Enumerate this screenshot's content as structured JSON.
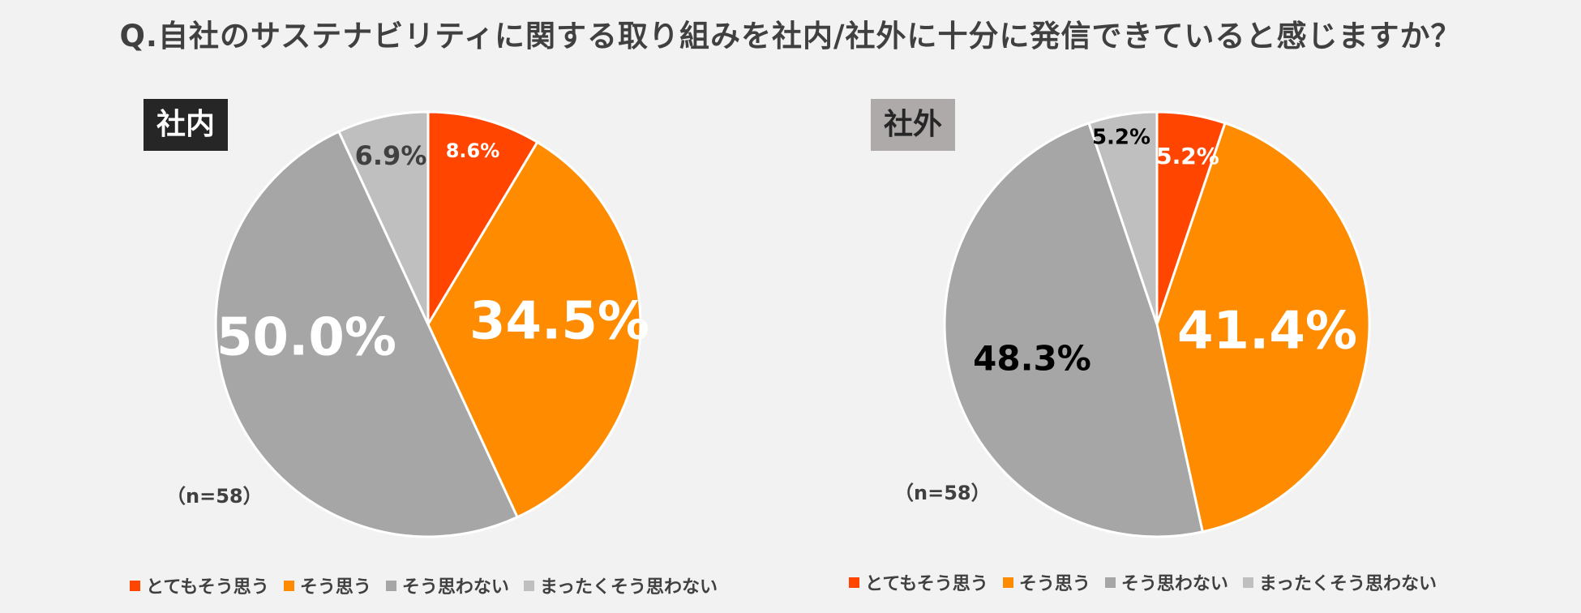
{
  "title": "Q.自社のサステナビリティに関する取り組みを社内/社外に十分に発信できていると感じますか？",
  "colors": {
    "とてもそう思う": "#ff4500",
    "そう思う": "#ff8c00",
    "そう思わない": "#a6a6a6",
    "まったくそう思わない": "#bfbfbf"
  },
  "chart_data": [
    {
      "type": "pie",
      "title": "社内",
      "n_label": "（n=58）",
      "categories": [
        "とてもそう思う",
        "そう思う",
        "そう思わない",
        "まったくそう思わない"
      ],
      "values": [
        8.6,
        34.5,
        50.0,
        6.9
      ],
      "labels": [
        "8.6%",
        "34.5%",
        "50.0%",
        "6.9%"
      ],
      "legend": [
        "とてもそう思う",
        "そう思う",
        "そう思わない",
        "まったくそう思わない"
      ]
    },
    {
      "type": "pie",
      "title": "社外",
      "n_label": "（n=58）",
      "categories": [
        "とてもそう思う",
        "そう思う",
        "そう思わない",
        "まったくそう思わない"
      ],
      "values": [
        5.2,
        41.4,
        48.3,
        5.2
      ],
      "labels": [
        "5.2%",
        "41.4%",
        "48.3%",
        "5.2%"
      ],
      "legend": [
        "とてもそう思う",
        "そう思う",
        "そう思わない",
        "まったくそう思わない"
      ]
    }
  ]
}
